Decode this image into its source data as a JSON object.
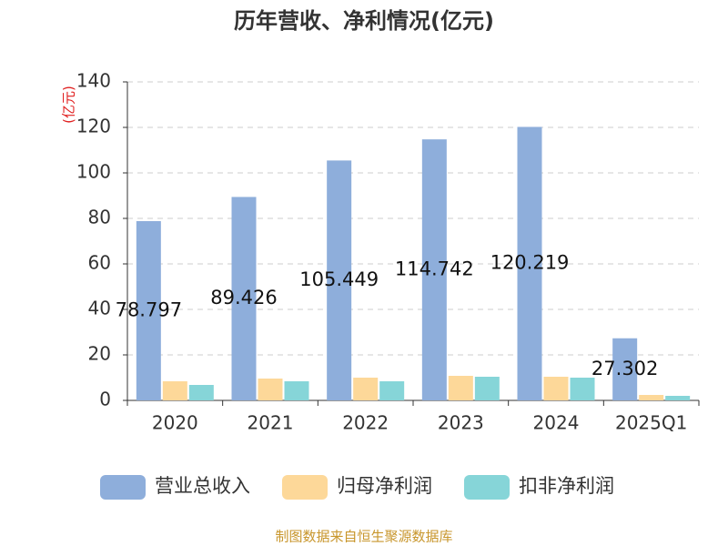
{
  "chart_data": {
    "type": "bar",
    "title": "历年营收、净利情况(亿元)",
    "y_label": "(亿元)",
    "source": "制图数据来自恒生聚源数据库",
    "categories": [
      "2020",
      "2021",
      "2022",
      "2023",
      "2024",
      "2025Q1"
    ],
    "series": [
      {
        "name": "营业总收入",
        "color": "#8eaedb",
        "labels": true,
        "values": [
          78.797,
          89.426,
          105.449,
          114.742,
          120.219,
          27.302
        ]
      },
      {
        "name": "归母净利润",
        "color": "#fdd899",
        "labels": false,
        "values": [
          8.4,
          9.6,
          10.0,
          10.8,
          10.4,
          2.4
        ]
      },
      {
        "name": "扣非净利润",
        "color": "#86d5d8",
        "labels": false,
        "values": [
          6.8,
          8.4,
          8.4,
          10.4,
          10.0,
          2.0
        ]
      }
    ],
    "ylim": [
      0,
      140
    ],
    "yticks": [
      0,
      20,
      40,
      60,
      80,
      100,
      120,
      140
    ],
    "grid": true
  }
}
